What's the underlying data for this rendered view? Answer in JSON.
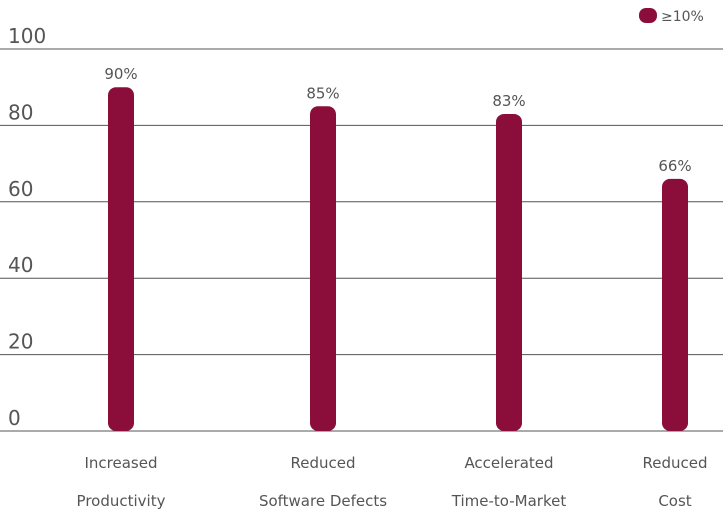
{
  "chart_data": {
    "type": "bar",
    "categories": [
      [
        "Increased",
        "Productivity"
      ],
      [
        "Reduced",
        "Software Defects"
      ],
      [
        "Accelerated",
        "Time-to-Market"
      ],
      [
        "Reduced",
        "Cost"
      ]
    ],
    "series": [
      {
        "name": "≥10%",
        "values": [
          90,
          85,
          83,
          66
        ],
        "labels": [
          "90%",
          "85%",
          "83%",
          "66%"
        ],
        "color": "#8B0E3A"
      }
    ],
    "ylim": [
      0,
      100
    ],
    "yticks": [
      0,
      20,
      40,
      60,
      80,
      100
    ],
    "grid": true,
    "legend_position": "top-right",
    "grid_color": "#555555"
  }
}
